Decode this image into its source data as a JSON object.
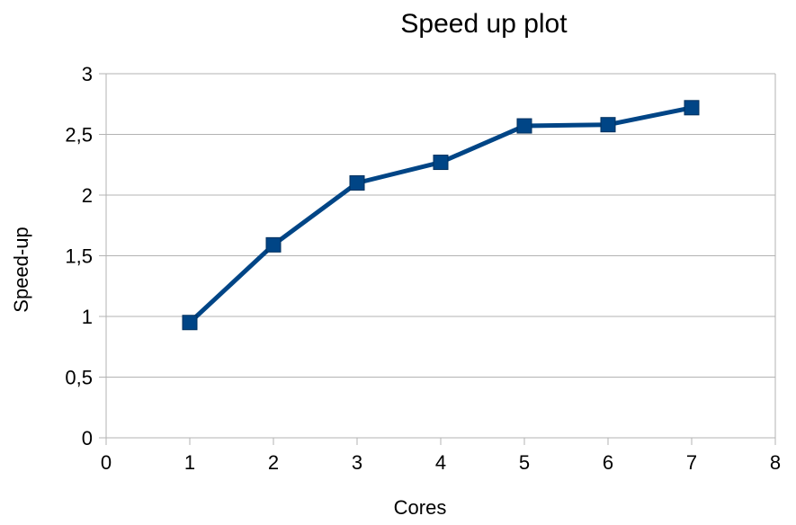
{
  "chart_data": {
    "type": "line",
    "title": "Speed up plot",
    "xlabel": "Cores",
    "ylabel": "Speed-up",
    "xlim": [
      0,
      8
    ],
    "ylim": [
      0,
      3
    ],
    "x_ticks": [
      "0",
      "1",
      "2",
      "3",
      "4",
      "5",
      "6",
      "7",
      "8"
    ],
    "y_ticks": [
      "0",
      "0,5",
      "1",
      "1,5",
      "2",
      "2,5",
      "3"
    ],
    "grid": true,
    "legend": "none",
    "series": [
      {
        "color": "#004586",
        "marker": "square",
        "x": [
          1,
          2,
          3,
          4,
          5,
          6,
          7
        ],
        "y": [
          0.95,
          1.59,
          2.1,
          2.27,
          2.57,
          2.58,
          2.72
        ]
      }
    ]
  }
}
